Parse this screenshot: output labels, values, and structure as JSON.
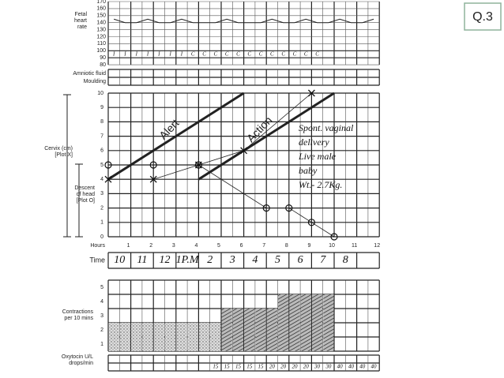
{
  "badge": "Q.3",
  "fetal_heart": {
    "label": [
      "Fetal",
      "heart",
      "rate"
    ],
    "ticks": [
      170,
      160,
      150,
      140,
      130,
      120,
      110,
      100,
      90,
      80
    ],
    "values": [
      145,
      140,
      140,
      145,
      140,
      140,
      145,
      140,
      140,
      140,
      145,
      140,
      140,
      140,
      145,
      140,
      140,
      145,
      140,
      140,
      145,
      140,
      140,
      145
    ]
  },
  "amniotic": {
    "label": "Amniotic fluid",
    "entries": [
      "I",
      "I",
      "I",
      "I",
      "I",
      "I",
      "I",
      "C",
      "C",
      "C",
      "C",
      "C",
      "C",
      "C",
      "C",
      "C",
      "C",
      "C",
      "C"
    ]
  },
  "moulding": {
    "label": "Moulding"
  },
  "labor": {
    "cervix_label": [
      "Cervix (cm)",
      "[Plot X]"
    ],
    "descent_label": [
      "Descent",
      "of head",
      "[Plot O]"
    ],
    "yticks": [
      0,
      1,
      2,
      3,
      4,
      5,
      6,
      7,
      8,
      9,
      10
    ],
    "hours_label": "Hours",
    "hours": [
      1,
      2,
      3,
      4,
      5,
      6,
      7,
      8,
      9,
      10,
      11,
      12
    ],
    "time_label": "Time",
    "times": [
      "10",
      "11",
      "12",
      "1P.M",
      "2",
      "3",
      "4",
      "5",
      "6",
      "7",
      "8"
    ],
    "alert": "Alert",
    "action": "Action",
    "note": [
      "Spont. vaginal",
      "delivery",
      "Live male",
      "baby",
      "Wt.- 2.7Kg."
    ],
    "cervix": {
      "x": [
        0,
        2,
        4,
        6,
        9
      ],
      "y": [
        4,
        4,
        5,
        6,
        10
      ]
    },
    "descent": {
      "x": [
        0,
        2,
        4,
        7,
        8,
        9,
        10
      ],
      "y": [
        5,
        5,
        5,
        2,
        2,
        1,
        0
      ]
    }
  },
  "contractions": {
    "label": [
      "Contractions",
      "per 10 mins"
    ],
    "ticks": [
      1,
      2,
      3,
      4,
      5
    ],
    "values": [
      2,
      2,
      2,
      2,
      2,
      2,
      2,
      2,
      2,
      2,
      3,
      3,
      3,
      3,
      3,
      4,
      4,
      4,
      4,
      4
    ]
  },
  "oxytocin": {
    "label": [
      "Oxytocin U/L",
      "drops/min"
    ],
    "entries": [
      "15",
      "15",
      "15",
      "15",
      "15",
      "20",
      "20",
      "20",
      "20",
      "30",
      "30",
      "40",
      "40",
      "40",
      "40"
    ]
  }
}
